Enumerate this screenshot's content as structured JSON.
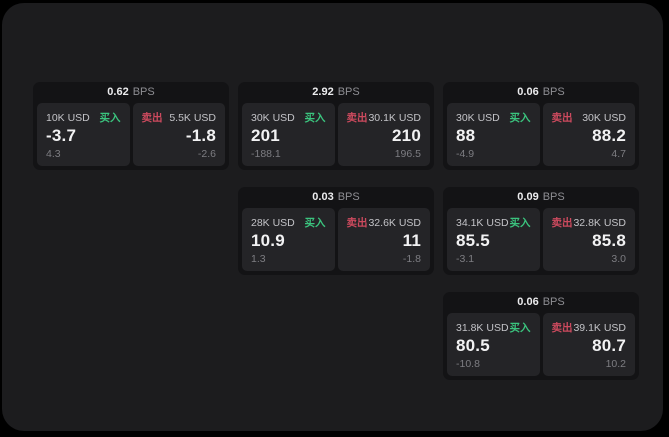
{
  "labels": {
    "buy": "买入",
    "sell": "卖出",
    "unit": "BPS"
  },
  "colors": {
    "frame_bg": "#1c1c1e",
    "card_bg": "#131315",
    "panel_bg": "#242427",
    "buy": "#3bc47e",
    "sell": "#cd4a5e",
    "value_text": "#f2f2f3",
    "label_text": "#c3c3c7",
    "sub_text": "#7d7d82",
    "unit_text": "#8e8e93"
  },
  "cards": [
    {
      "row": 0,
      "col": 0,
      "bps": "0.62",
      "buy": {
        "amount": "10K USD",
        "value": "-3.7",
        "sub": "4.3"
      },
      "sell": {
        "amount": "5.5K USD",
        "value": "-1.8",
        "sub": "-2.6"
      }
    },
    {
      "row": 0,
      "col": 1,
      "bps": "2.92",
      "buy": {
        "amount": "30K USD",
        "value": "201",
        "sub": "-188.1"
      },
      "sell": {
        "amount": "30.1K USD",
        "value": "210",
        "sub": "196.5"
      }
    },
    {
      "row": 0,
      "col": 2,
      "bps": "0.06",
      "buy": {
        "amount": "30K USD",
        "value": "88",
        "sub": "-4.9"
      },
      "sell": {
        "amount": "30K USD",
        "value": "88.2",
        "sub": "4.7"
      }
    },
    {
      "row": 1,
      "col": 1,
      "bps": "0.03",
      "buy": {
        "amount": "28K USD",
        "value": "10.9",
        "sub": "1.3"
      },
      "sell": {
        "amount": "32.6K USD",
        "value": "11",
        "sub": "-1.8"
      }
    },
    {
      "row": 1,
      "col": 2,
      "bps": "0.09",
      "buy": {
        "amount": "34.1K USD",
        "value": "85.5",
        "sub": "-3.1"
      },
      "sell": {
        "amount": "32.8K USD",
        "value": "85.8",
        "sub": "3.0"
      }
    },
    {
      "row": 2,
      "col": 2,
      "bps": "0.06",
      "buy": {
        "amount": "31.8K USD",
        "value": "80.5",
        "sub": "-10.8"
      },
      "sell": {
        "amount": "39.1K USD",
        "value": "80.7",
        "sub": "10.2"
      }
    }
  ]
}
